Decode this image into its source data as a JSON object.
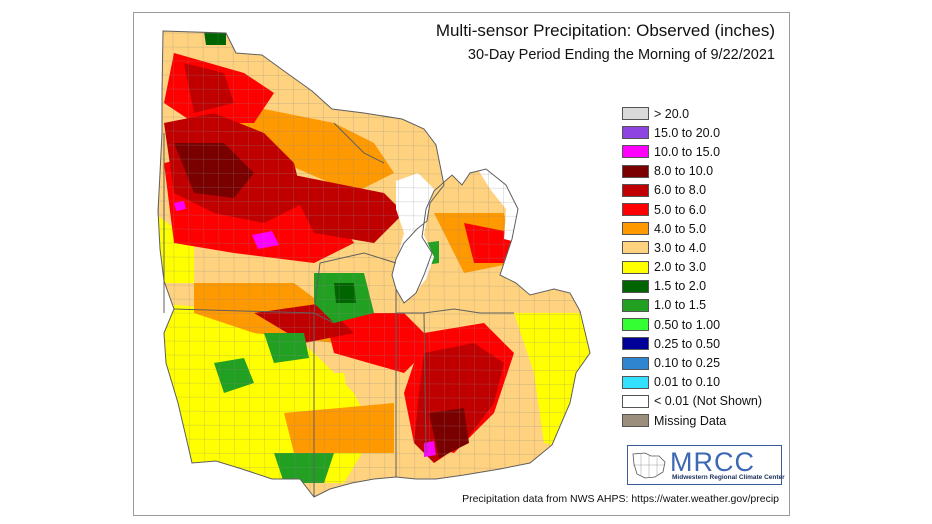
{
  "map": {
    "title": "Multi-sensor Precipitation: Observed (inches)",
    "subtitle": "30-Day Period Ending the Morning of 9/22/2021",
    "region": "Midwest United States",
    "layers": [
      "states",
      "counties",
      "precipitation-grid"
    ]
  },
  "legend": {
    "items": [
      {
        "label": "> 20.0",
        "color": "#d9d9d9"
      },
      {
        "label": "15.0 to 20.0",
        "color": "#8e44e0"
      },
      {
        "label": "10.0 to 15.0",
        "color": "#ff00ff"
      },
      {
        "label": "8.0 to 10.0",
        "color": "#7a0000"
      },
      {
        "label": "6.0 to 8.0",
        "color": "#c00000"
      },
      {
        "label": "5.0 to 6.0",
        "color": "#ff0000"
      },
      {
        "label": "4.0 to 5.0",
        "color": "#ff9900"
      },
      {
        "label": "3.0 to 4.0",
        "color": "#ffd27f"
      },
      {
        "label": "2.0 to 3.0",
        "color": "#ffff00"
      },
      {
        "label": "1.5 to 2.0",
        "color": "#006400"
      },
      {
        "label": "1.0 to 1.5",
        "color": "#22a022"
      },
      {
        "label": "0.50 to 1.00",
        "color": "#33ff33"
      },
      {
        "label": "0.25 to 0.50",
        "color": "#000099"
      },
      {
        "label": "0.10 to 0.25",
        "color": "#2f85d0"
      },
      {
        "label": "0.01 to 0.10",
        "color": "#33e0ff"
      },
      {
        "label": "< 0.01 (Not Shown)",
        "color": "#ffffff"
      },
      {
        "label": "Missing Data",
        "color": "#9c8e7c"
      }
    ]
  },
  "logo": {
    "name": "MRCC",
    "full_name": "Midwestern Regional Climate Center"
  },
  "footer": {
    "source": "Precipitation data from NWS AHPS: https://water.weather.gov/precip"
  },
  "colors": {
    "land_base": "#ffd27f",
    "border": "#7a7a7a"
  }
}
